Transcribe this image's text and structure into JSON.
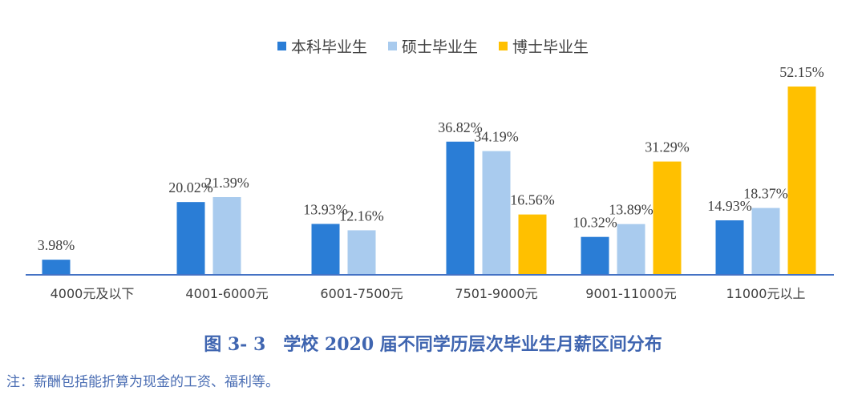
{
  "chart_data": {
    "type": "bar",
    "categories": [
      "4000元及以下",
      "4001-6000元",
      "6001-7500元",
      "7501-9000元",
      "9001-11000元",
      "11000元以上"
    ],
    "series": [
      {
        "name": "本科毕业生",
        "color": "#2a7dd6",
        "values": [
          3.98,
          20.02,
          13.93,
          36.82,
          10.32,
          14.93
        ]
      },
      {
        "name": "硕士毕业生",
        "color": "#a9cbee",
        "values": [
          null,
          21.39,
          12.16,
          34.19,
          13.89,
          18.37
        ]
      },
      {
        "name": "博士毕业生",
        "color": "#ffc000",
        "values": [
          null,
          null,
          null,
          16.56,
          31.29,
          52.15
        ]
      }
    ],
    "value_format": "percent",
    "ylim": [
      0,
      55
    ],
    "grid": false,
    "legend_position": "top",
    "axis_color": "#4472c4"
  },
  "caption": {
    "title": "图 3- 3　学校 2020 届不同学历层次毕业生月薪区间分布",
    "note": "注：薪酬包括能折算为现金的工资、福利等。"
  }
}
